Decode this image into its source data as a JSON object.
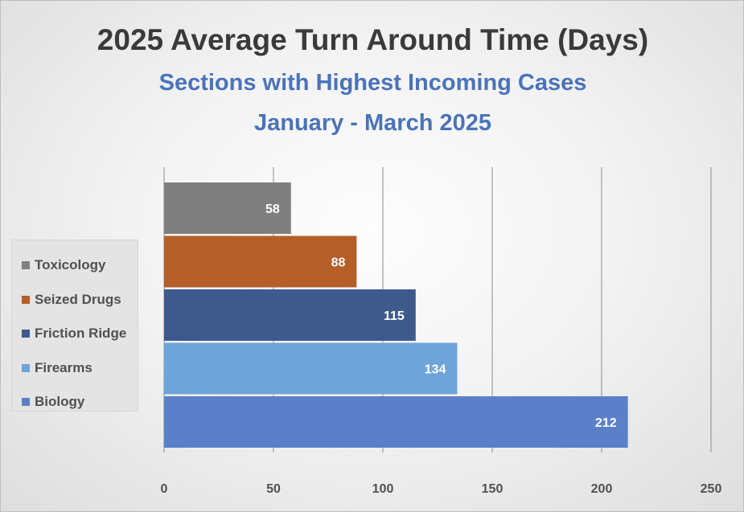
{
  "title": "2025 Average Turn Around Time (Days)",
  "subtitle": "Sections with Highest Incoming Cases",
  "period": "January  - March 2025",
  "chart_data": {
    "type": "bar",
    "orientation": "horizontal",
    "categories": [
      "Toxicology",
      "Seized Drugs",
      "Friction Ridge",
      "Firearms",
      "Biology"
    ],
    "values": [
      58,
      88,
      115,
      134,
      212
    ],
    "colors": [
      "#7f7f7f",
      "#b55e28",
      "#3e5a8c",
      "#6fa4da",
      "#5b80c9"
    ],
    "xlim": [
      0,
      250
    ],
    "xticks": [
      "0",
      "50",
      "100",
      "150",
      "200",
      "250"
    ],
    "grid": true,
    "legend_position": "left"
  },
  "legend": [
    {
      "label": "Toxicology",
      "color": "#7f7f7f"
    },
    {
      "label": "Seized Drugs",
      "color": "#b55e28"
    },
    {
      "label": "Friction Ridge",
      "color": "#3e5a8c"
    },
    {
      "label": "Firearms",
      "color": "#6fa4da"
    },
    {
      "label": "Biology",
      "color": "#5b80c9"
    }
  ]
}
